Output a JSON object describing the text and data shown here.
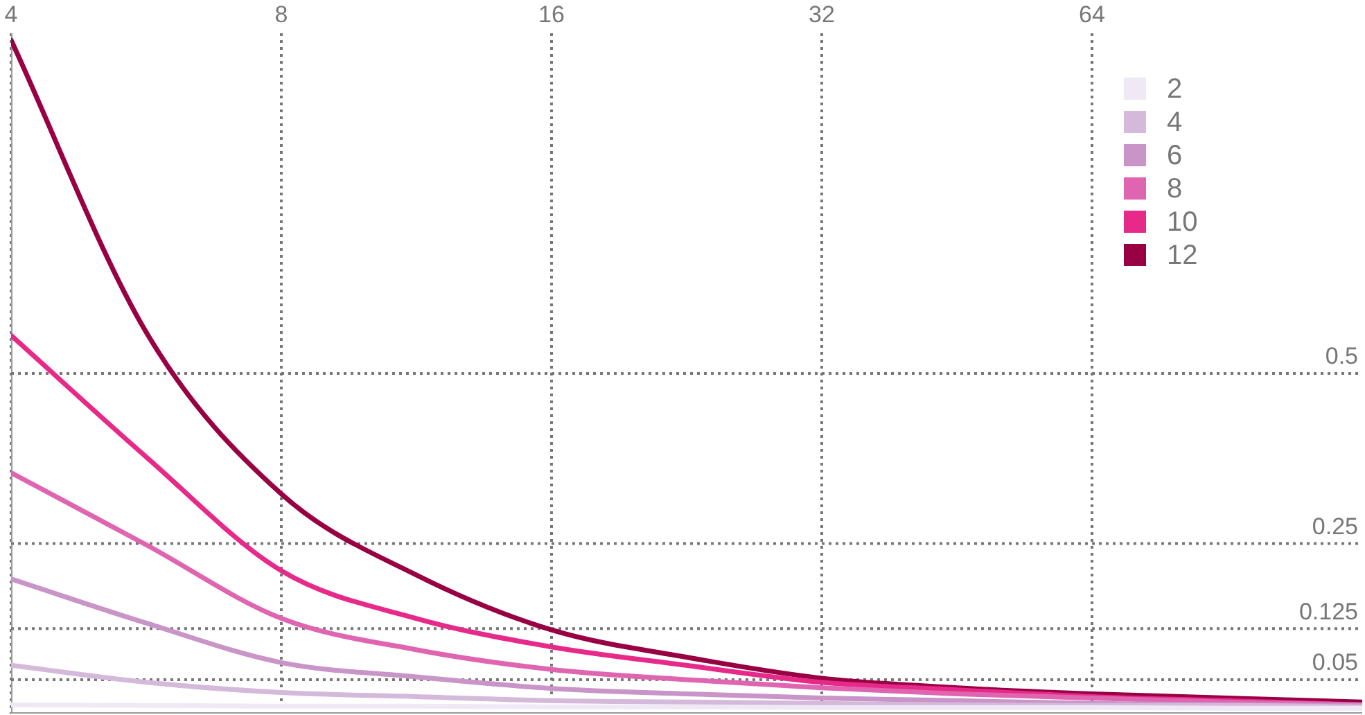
{
  "chart_data": {
    "type": "line",
    "x": [
      4,
      5.66,
      8,
      11.3,
      16,
      22.6,
      32,
      45.3,
      64,
      90.5,
      128
    ],
    "series": [
      {
        "name": "2",
        "color": "#efe9f5",
        "values": [
          0.013,
          0.012,
          0.011,
          0.011,
          0.01,
          0.01,
          0.009,
          0.009,
          0.009,
          0.008,
          0.008
        ]
      },
      {
        "name": "4",
        "color": "#d4b9da",
        "values": [
          0.071,
          0.046,
          0.031,
          0.025,
          0.019,
          0.017,
          0.015,
          0.013,
          0.012,
          0.012,
          0.01
        ]
      },
      {
        "name": "6",
        "color": "#c994c7",
        "values": [
          0.198,
          0.133,
          0.075,
          0.054,
          0.037,
          0.029,
          0.023,
          0.019,
          0.015,
          0.013,
          0.012
        ]
      },
      {
        "name": "8",
        "color": "#df65b0",
        "values": [
          0.354,
          0.248,
          0.14,
          0.094,
          0.065,
          0.05,
          0.038,
          0.029,
          0.023,
          0.017,
          0.013
        ]
      },
      {
        "name": "10",
        "color": "#e7298a",
        "values": [
          0.556,
          0.377,
          0.21,
          0.14,
          0.098,
          0.071,
          0.046,
          0.035,
          0.025,
          0.019,
          0.013
        ]
      },
      {
        "name": "12",
        "color": "#980043",
        "values": [
          0.99,
          0.56,
          0.323,
          0.204,
          0.123,
          0.083,
          0.052,
          0.038,
          0.029,
          0.023,
          0.017
        ]
      }
    ],
    "xlim": [
      4,
      128
    ],
    "xticks": [
      4,
      8,
      16,
      32,
      64
    ],
    "ylim": [
      0,
      1
    ],
    "yticks": [
      0.05,
      0.125,
      0.25,
      0.5
    ],
    "log": "x",
    "grid": true,
    "legend": "top right",
    "marker": "none",
    "line_style": "solid"
  }
}
